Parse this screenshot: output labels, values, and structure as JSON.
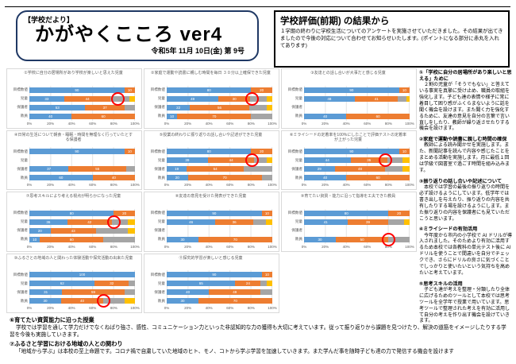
{
  "header": {
    "tag": "【学校だより】",
    "title": "かがやくこころ ver4",
    "date": "令和5年 11月 10日(金) 第 9号"
  },
  "intro": {
    "title": "学校評価(前期) の結果から",
    "body": "１学期の終わりに学校生活についてのアンケートを実施させていただきました。その結果が出てきましたので今後の対応について合わせてお知らせいたします。(ポイントになる部分に赤丸を入れてあります)"
  },
  "notes": [
    {
      "heading": "①「学校に自分の居場所があり楽しいと思える」ために",
      "body": "２割の児童が「そうでもない」と答えている事実を真摯に受け止め、職員の取組を強化します。子ども達の表情や様子に常に着目して困り感がふくらまないように話を聞く機会を設けます。また聞く力を強化するために、友達の意見を自分の言葉で言い直しをしたり、教師が繰り返させたりする機会を設けます。"
    },
    {
      "heading": "②家庭で運動や読書に親しむ時間の確保",
      "body": "教師による読み聞かせを実施します。また、新聞記事を読んで内容や感じたことをまとめる活動を実施します。月に最低１回は学級で図書室で過ごす時間を組み込みます。"
    },
    {
      "heading": "③振り返りの話し合いや記述について",
      "body": "本校では学習の最後の振り返りの時間を必ず設けるようにしています。低学年では書き出しを与えたり、振り返りの内容を共有したりする場を設けるようにします。また振り返りの内容を保護者にも見ていただこうと思います。"
    },
    {
      "heading": "④ミライシードの有効活用",
      "body": "今年度から市内の小学校で AI ドリルが導入されました。そのためより有効に活用するため本校では各教科の単元テスト後に AI ドリルを使うことで間違いを自分でチェックでき、さらにドリルの良さに気づくことでしっかりと使いたいという気持ちを高めたいと考えています。"
    },
    {
      "heading": "⑤思考スキルの活用",
      "body": "子ども達が考えを整理・分類したり全体に広げるためのツールとして本校では思考ツールを全学年で授業で用いています。思考ツールで整理された考えを有効に活用して自分の考えを作り出す機会を設けていきます。"
    }
  ],
  "bottom_notes": [
    {
      "heading": "⑥育てたい資質能力に沿った授業",
      "body": "学校では学習を通して学力だけでなくねばり強さ、感性、コミュニケーション力といった非認知的な力の獲得も大切に考えています。従って振り返りから課題を見つけたり、解決の道筋をイメージしたりする学習を今後も実施していきます。"
    },
    {
      "heading": "⑦ふるさと学習における地域の人との関わり",
      "body": "「地域から学ぶ」は本校の至上命題です。コロナ禍で自粛していた地域のヒト、モノ、コトから学ぶ学習を加速していきます。また学んだ事を随時子ども達の力で発信する機会を設けます"
    }
  ],
  "chart_data": {
    "type": "bar",
    "orientation": "horizontal",
    "stacked": true,
    "unit": "%",
    "xlim": [
      0,
      100
    ],
    "x_ticks": [
      "0%",
      "20%",
      "40%",
      "60%",
      "80%",
      "100%"
    ],
    "categories": [
      "目標数値",
      "児童",
      "保護者",
      "教員"
    ],
    "series_colors": [
      "#5b9bd5",
      "#ed7d31",
      "#a5a5a5",
      "#ffc000"
    ],
    "highlight_color": "#ff0000",
    "grid": true,
    "legend": false,
    "charts": [
      {
        "title": "①学校に自分の居場所があり学校が楽しいと思えた児童",
        "rows": [
          [
            90,
            10,
            0,
            0
          ],
          [
            33,
            44,
            18,
            5
          ],
          [
            53,
            37,
            10,
            0
          ],
          [
            40,
            60,
            0,
            0
          ]
        ],
        "circle": {
          "row": 1,
          "pos": 84
        }
      },
      {
        "title": "②家庭で運動や読書に親しむ時間を毎日 ３０分以上確保できた児童",
        "rows": [
          [
            80,
            20,
            0,
            0
          ],
          [
            49,
            30,
            16,
            5
          ],
          [
            22,
            56,
            17,
            5
          ],
          [
            10,
            70,
            20,
            0
          ]
        ],
        "circle": {
          "row": 1,
          "pos": 81
        }
      },
      {
        "title": "③友達との話し合いが大事だと感じる児童",
        "rows": [
          [
            90,
            10,
            0,
            0
          ],
          [
            48,
            41,
            8,
            3
          ],
          [
            0,
            0,
            0,
            0
          ],
          [
            40,
            60,
            0,
            0
          ]
        ],
        "circle": null
      },
      {
        "title": "④日常の生活について朝食・睡眠・時間を無理なく行っていたとする保護者",
        "rows": [
          [
            90,
            10,
            0,
            0
          ],
          [
            0,
            0,
            0,
            0
          ],
          [
            37,
            55,
            8,
            0
          ],
          [
            60,
            40,
            0,
            0
          ]
        ],
        "circle": null
      },
      {
        "title": "⑤授業の終わりに振り返りの話し合いや記述ができた児童",
        "rows": [
          [
            80,
            20,
            0,
            0
          ],
          [
            39,
            44,
            12,
            5
          ],
          [
            19,
            54,
            27,
            0
          ],
          [
            20,
            70,
            10,
            0
          ]
        ],
        "circle": {
          "row": 1,
          "pos": 81
        }
      },
      {
        "title": "⑥ミライシードの定着率を100%にしたことで評価テストの定着率が上がった児童",
        "rows": [
          [
            90,
            10,
            0,
            0
          ],
          [
            44,
            35,
            14,
            7
          ],
          [
            29,
            48,
            16,
            7
          ],
          [
            40,
            60,
            0,
            0
          ]
        ],
        "circle": {
          "row": 1,
          "pos": 77
        }
      },
      {
        "title": "⑦思考スキルにより考える視点が明らかになった児童",
        "rows": [
          [
            80,
            20,
            0,
            0
          ],
          [
            36,
            42,
            15,
            7
          ],
          [
            20,
            43,
            30,
            7
          ],
          [
            10,
            60,
            30,
            0
          ]
        ],
        "circle": {
          "row": 1,
          "pos": 80
        }
      },
      {
        "title": "⑧友達の意見を受けた発表ができた児童",
        "rows": [
          [
            90,
            10,
            0,
            0
          ],
          [
            46,
            36,
            12,
            6
          ],
          [
            0,
            0,
            0,
            0
          ],
          [
            30,
            70,
            0,
            0
          ]
        ],
        "circle": null
      },
      {
        "title": "⑨育てたい資質・能力に沿って指導を工夫できた教員",
        "rows": [
          [
            80,
            20,
            0,
            0
          ],
          [
            41,
            39,
            15,
            5
          ],
          [
            0,
            0,
            0,
            0
          ],
          [
            30,
            50,
            20,
            0
          ]
        ],
        "circle": {
          "row": 3,
          "pos": 80
        }
      },
      {
        "title": "⑩ふるさとの地域の人と関わった体験活動や探究活動の出来た児童",
        "rows": [
          [
            100,
            0,
            0,
            0
          ],
          [
            62,
            32,
            6,
            0
          ],
          [
            31,
            59,
            10,
            0
          ],
          [
            30,
            40,
            20,
            10
          ]
        ],
        "circle": {
          "row": 3,
          "pos": 70
        }
      },
      {
        "title": "⑪探究的学習が楽しいと感じる児童",
        "rows": [
          [
            90,
            10,
            0,
            0
          ],
          [
            65,
            24,
            6,
            5
          ],
          [
            40,
            49,
            11,
            0
          ],
          [
            30,
            70,
            0,
            0
          ]
        ],
        "circle": null
      }
    ]
  }
}
